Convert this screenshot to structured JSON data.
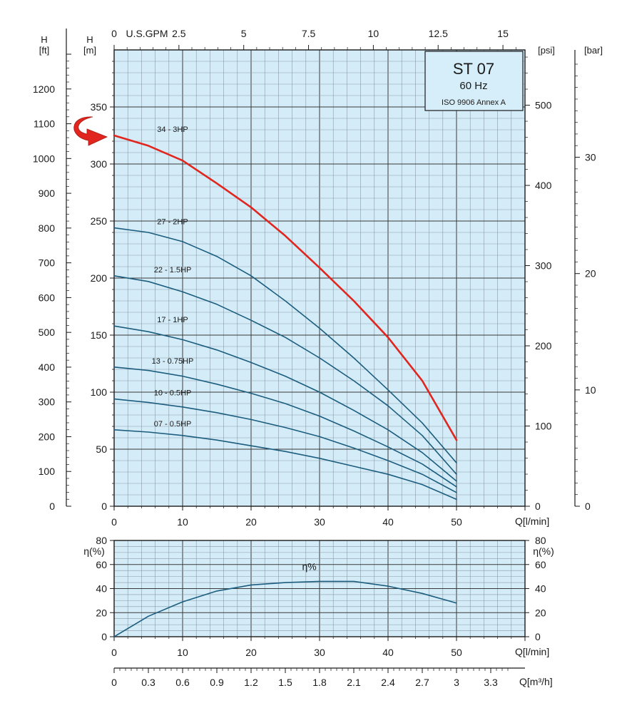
{
  "colors": {
    "plot_bg": "#d4ecf8",
    "grid_minor": "#8a9aa5",
    "grid_major": "#3a3a3a",
    "curve": "#1c5d7e",
    "highlight": "#e0261e",
    "title_box": "#d6eefa"
  },
  "title": {
    "model": "ST 07",
    "frequency": "60 Hz",
    "standard": "ISO 9906 Annex A"
  },
  "axis_labels": {
    "h_ft": [
      "H",
      "[ft]"
    ],
    "h_m": [
      "H",
      "[m]"
    ],
    "gpm": "U.S.GPM",
    "psi": "[psi]",
    "bar": "[bar]",
    "q_lmin": "Q[l/min]",
    "q_lmin_eff": "Q[l/min]",
    "q_m3h": "Q[m³/h]",
    "eta_left": "η(%)",
    "eta_right": "η(%)"
  },
  "chart_data": [
    {
      "type": "line",
      "title": "ST 07",
      "xlabel": "Q[l/min]",
      "ylabel": "H [m]",
      "xlim": [
        0,
        60
      ],
      "ylim": [
        0,
        400
      ],
      "x_ticks": [
        0,
        10,
        20,
        30,
        40,
        50
      ],
      "y_ticks": [
        0,
        50,
        100,
        150,
        200,
        250,
        300,
        350
      ],
      "ft_ticks": [
        0,
        100,
        200,
        300,
        400,
        500,
        600,
        700,
        800,
        900,
        1000,
        1100,
        1200
      ],
      "psi_ticks": [
        0,
        100,
        200,
        300,
        400,
        500
      ],
      "bar_ticks": [
        0,
        10,
        20,
        30
      ],
      "gpm_ticks": [
        "0",
        "2.5",
        "5",
        "7.5",
        "10",
        "12.5",
        "15"
      ],
      "grid": true,
      "series": [
        {
          "name": "34 - 3HP",
          "highlight": true,
          "x": [
            0,
            5,
            10,
            15,
            20,
            25,
            30,
            35,
            40,
            45,
            50
          ],
          "y": [
            325,
            316,
            303,
            283,
            262,
            237,
            209,
            180,
            148,
            110,
            58
          ]
        },
        {
          "name": "27 - 2HP",
          "highlight": false,
          "x": [
            0,
            5,
            10,
            15,
            20,
            25,
            30,
            35,
            40,
            45,
            50
          ],
          "y": [
            244,
            240,
            232,
            219,
            202,
            180,
            156,
            130,
            102,
            73,
            38
          ]
        },
        {
          "name": "22 - 1.5HP",
          "highlight": false,
          "x": [
            0,
            5,
            10,
            15,
            20,
            25,
            30,
            35,
            40,
            45,
            50
          ],
          "y": [
            202,
            197,
            188,
            177,
            163,
            148,
            130,
            110,
            88,
            62,
            28
          ]
        },
        {
          "name": "17 - 1HP",
          "highlight": false,
          "x": [
            0,
            5,
            10,
            15,
            20,
            25,
            30,
            35,
            40,
            45,
            50
          ],
          "y": [
            158,
            153,
            146,
            137,
            126,
            114,
            100,
            84,
            67,
            47,
            22
          ]
        },
        {
          "name": "13 - 0.75HP",
          "highlight": false,
          "x": [
            0,
            5,
            10,
            15,
            20,
            25,
            30,
            35,
            40,
            45,
            50
          ],
          "y": [
            122,
            119,
            114,
            107,
            99,
            90,
            79,
            66,
            52,
            37,
            17
          ]
        },
        {
          "name": "10 - 0.5HP",
          "highlight": false,
          "x": [
            0,
            5,
            10,
            15,
            20,
            25,
            30,
            35,
            40,
            45,
            50
          ],
          "y": [
            94,
            91,
            87,
            82,
            76,
            69,
            61,
            51,
            40,
            28,
            12
          ]
        },
        {
          "name": "07 - 0.5HP",
          "highlight": false,
          "x": [
            0,
            5,
            10,
            15,
            20,
            25,
            30,
            35,
            40,
            45,
            50
          ],
          "y": [
            67,
            65,
            62,
            58,
            53,
            48,
            42,
            35,
            28,
            19,
            6
          ]
        }
      ]
    },
    {
      "type": "line",
      "title": "",
      "xlabel": "Q[l/min]",
      "ylabel": "η(%)",
      "xlim": [
        0,
        60
      ],
      "ylim": [
        0,
        80
      ],
      "x_ticks": [
        0,
        10,
        20,
        30,
        40,
        50
      ],
      "y_ticks": [
        0,
        20,
        40,
        60,
        80
      ],
      "grid": true,
      "series": [
        {
          "name": "η%",
          "x": [
            0,
            5,
            10,
            15,
            20,
            25,
            30,
            35,
            40,
            45,
            50
          ],
          "y": [
            0,
            17,
            29,
            38,
            43,
            45,
            46,
            46,
            42,
            36,
            28
          ]
        }
      ]
    }
  ],
  "flow_m3h_ticks": [
    "0",
    "0.3",
    "0.6",
    "0.9",
    "1.2",
    "1.5",
    "1.8",
    "2.1",
    "2.4",
    "2.7",
    "3",
    "3.3"
  ]
}
